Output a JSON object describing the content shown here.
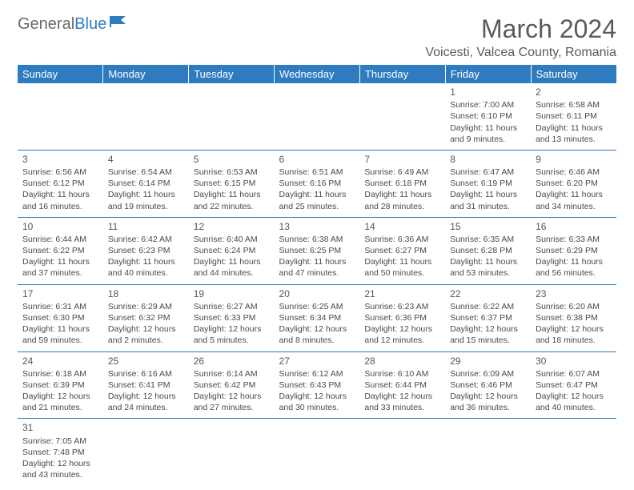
{
  "logo": {
    "text1": "General",
    "text2": "Blue"
  },
  "title": "March 2024",
  "location": "Voicesti, Valcea County, Romania",
  "colors": {
    "header_bg": "#2f7bbf",
    "header_text": "#ffffff",
    "body_text": "#4a4a4a",
    "border": "#2f7bbf",
    "title_color": "#5a5a5a"
  },
  "day_headers": [
    "Sunday",
    "Monday",
    "Tuesday",
    "Wednesday",
    "Thursday",
    "Friday",
    "Saturday"
  ],
  "weeks": [
    [
      null,
      null,
      null,
      null,
      null,
      {
        "n": "1",
        "sr": "7:00 AM",
        "ss": "6:10 PM",
        "dl": "11 hours and 9 minutes."
      },
      {
        "n": "2",
        "sr": "6:58 AM",
        "ss": "6:11 PM",
        "dl": "11 hours and 13 minutes."
      }
    ],
    [
      {
        "n": "3",
        "sr": "6:56 AM",
        "ss": "6:12 PM",
        "dl": "11 hours and 16 minutes."
      },
      {
        "n": "4",
        "sr": "6:54 AM",
        "ss": "6:14 PM",
        "dl": "11 hours and 19 minutes."
      },
      {
        "n": "5",
        "sr": "6:53 AM",
        "ss": "6:15 PM",
        "dl": "11 hours and 22 minutes."
      },
      {
        "n": "6",
        "sr": "6:51 AM",
        "ss": "6:16 PM",
        "dl": "11 hours and 25 minutes."
      },
      {
        "n": "7",
        "sr": "6:49 AM",
        "ss": "6:18 PM",
        "dl": "11 hours and 28 minutes."
      },
      {
        "n": "8",
        "sr": "6:47 AM",
        "ss": "6:19 PM",
        "dl": "11 hours and 31 minutes."
      },
      {
        "n": "9",
        "sr": "6:46 AM",
        "ss": "6:20 PM",
        "dl": "11 hours and 34 minutes."
      }
    ],
    [
      {
        "n": "10",
        "sr": "6:44 AM",
        "ss": "6:22 PM",
        "dl": "11 hours and 37 minutes."
      },
      {
        "n": "11",
        "sr": "6:42 AM",
        "ss": "6:23 PM",
        "dl": "11 hours and 40 minutes."
      },
      {
        "n": "12",
        "sr": "6:40 AM",
        "ss": "6:24 PM",
        "dl": "11 hours and 44 minutes."
      },
      {
        "n": "13",
        "sr": "6:38 AM",
        "ss": "6:25 PM",
        "dl": "11 hours and 47 minutes."
      },
      {
        "n": "14",
        "sr": "6:36 AM",
        "ss": "6:27 PM",
        "dl": "11 hours and 50 minutes."
      },
      {
        "n": "15",
        "sr": "6:35 AM",
        "ss": "6:28 PM",
        "dl": "11 hours and 53 minutes."
      },
      {
        "n": "16",
        "sr": "6:33 AM",
        "ss": "6:29 PM",
        "dl": "11 hours and 56 minutes."
      }
    ],
    [
      {
        "n": "17",
        "sr": "6:31 AM",
        "ss": "6:30 PM",
        "dl": "11 hours and 59 minutes."
      },
      {
        "n": "18",
        "sr": "6:29 AM",
        "ss": "6:32 PM",
        "dl": "12 hours and 2 minutes."
      },
      {
        "n": "19",
        "sr": "6:27 AM",
        "ss": "6:33 PM",
        "dl": "12 hours and 5 minutes."
      },
      {
        "n": "20",
        "sr": "6:25 AM",
        "ss": "6:34 PM",
        "dl": "12 hours and 8 minutes."
      },
      {
        "n": "21",
        "sr": "6:23 AM",
        "ss": "6:36 PM",
        "dl": "12 hours and 12 minutes."
      },
      {
        "n": "22",
        "sr": "6:22 AM",
        "ss": "6:37 PM",
        "dl": "12 hours and 15 minutes."
      },
      {
        "n": "23",
        "sr": "6:20 AM",
        "ss": "6:38 PM",
        "dl": "12 hours and 18 minutes."
      }
    ],
    [
      {
        "n": "24",
        "sr": "6:18 AM",
        "ss": "6:39 PM",
        "dl": "12 hours and 21 minutes."
      },
      {
        "n": "25",
        "sr": "6:16 AM",
        "ss": "6:41 PM",
        "dl": "12 hours and 24 minutes."
      },
      {
        "n": "26",
        "sr": "6:14 AM",
        "ss": "6:42 PM",
        "dl": "12 hours and 27 minutes."
      },
      {
        "n": "27",
        "sr": "6:12 AM",
        "ss": "6:43 PM",
        "dl": "12 hours and 30 minutes."
      },
      {
        "n": "28",
        "sr": "6:10 AM",
        "ss": "6:44 PM",
        "dl": "12 hours and 33 minutes."
      },
      {
        "n": "29",
        "sr": "6:09 AM",
        "ss": "6:46 PM",
        "dl": "12 hours and 36 minutes."
      },
      {
        "n": "30",
        "sr": "6:07 AM",
        "ss": "6:47 PM",
        "dl": "12 hours and 40 minutes."
      }
    ],
    [
      {
        "n": "31",
        "sr": "7:05 AM",
        "ss": "7:48 PM",
        "dl": "12 hours and 43 minutes."
      },
      null,
      null,
      null,
      null,
      null,
      null
    ]
  ],
  "labels": {
    "sunrise": "Sunrise: ",
    "sunset": "Sunset: ",
    "daylight": "Daylight: "
  }
}
